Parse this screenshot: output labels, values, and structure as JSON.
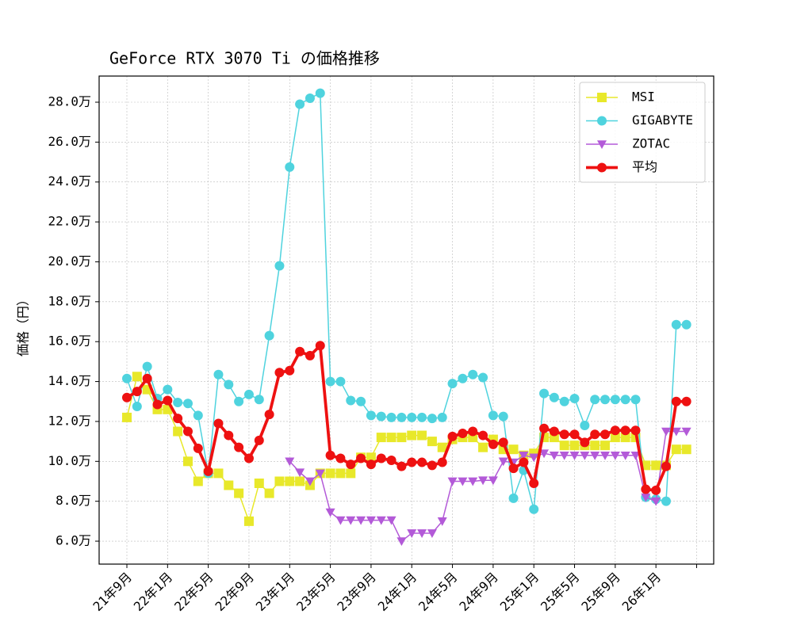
{
  "chart_data": {
    "type": "line",
    "title": "GeForce RTX 3070 Ti の価格推移",
    "y_label": "価格（円）",
    "categories": [
      "21年9月",
      null,
      null,
      null,
      "22年1月",
      null,
      null,
      null,
      "22年5月",
      null,
      null,
      null,
      "22年9月",
      null,
      null,
      null,
      "23年1月",
      null,
      null,
      null,
      "23年5月",
      null,
      null,
      null,
      "23年9月",
      null,
      null,
      null,
      "24年1月",
      null,
      null,
      null,
      "24年5月",
      null,
      null,
      null,
      "24年9月",
      null,
      null,
      null,
      "25年1月",
      null,
      null,
      null,
      "25年5月",
      null,
      null,
      null,
      "25年9月",
      null,
      null,
      null,
      "26年1月",
      null,
      null,
      null,
      null
    ],
    "series": [
      {
        "name": "MSI",
        "color": "#e8e82a",
        "marker": "square",
        "linewidth": 1,
        "values": [
          12.2,
          14.25,
          13.6,
          12.6,
          12.6,
          11.5,
          10.0,
          9.0,
          9.4,
          9.4,
          8.8,
          8.4,
          7.0,
          8.9,
          8.4,
          9.0,
          9.0,
          9.0,
          8.8,
          9.4,
          9.4,
          9.4,
          9.4,
          10.2,
          10.2,
          11.2,
          11.2,
          11.2,
          11.3,
          11.3,
          11.0,
          10.7,
          11.1,
          11.2,
          11.2,
          10.7,
          11.1,
          10.6,
          10.6,
          10.3,
          10.4,
          11.2,
          11.2,
          10.8,
          10.8,
          10.8,
          10.8,
          10.8,
          11.2,
          11.2,
          11.2,
          9.8,
          9.8,
          9.8,
          10.6,
          10.6,
          null
        ]
      },
      {
        "name": "GIGABYTE",
        "color": "#4fd3de",
        "marker": "circle",
        "linewidth": 1,
        "values": [
          14.15,
          12.75,
          14.75,
          13.15,
          13.6,
          12.95,
          12.9,
          12.3,
          9.4,
          14.35,
          13.85,
          13.0,
          13.35,
          13.1,
          16.3,
          19.8,
          24.75,
          27.9,
          28.2,
          28.45,
          14.0,
          14.0,
          13.05,
          13.0,
          12.3,
          12.25,
          12.2,
          12.2,
          12.2,
          12.2,
          12.15,
          12.2,
          13.9,
          14.15,
          14.35,
          14.2,
          12.3,
          12.25,
          8.15,
          9.55,
          7.6,
          13.4,
          13.2,
          13.0,
          13.15,
          11.8,
          13.1,
          13.1,
          13.1,
          13.1,
          13.1,
          8.2,
          8.1,
          8.0,
          16.85,
          16.85,
          null
        ]
      },
      {
        "name": "ZOTAC",
        "color": "#b35ad8",
        "marker": "triangle-down",
        "linewidth": 1,
        "values": [
          null,
          null,
          null,
          null,
          null,
          null,
          null,
          null,
          null,
          null,
          null,
          null,
          null,
          null,
          null,
          null,
          10.0,
          9.45,
          9.0,
          9.4,
          7.45,
          7.05,
          7.05,
          7.05,
          7.05,
          7.05,
          7.05,
          6.0,
          6.4,
          6.4,
          6.4,
          7.0,
          9.0,
          9.0,
          9.0,
          9.05,
          9.05,
          10.0,
          9.95,
          10.3,
          10.2,
          10.4,
          10.3,
          10.3,
          10.3,
          10.3,
          10.3,
          10.3,
          10.3,
          10.3,
          10.3,
          8.2,
          8.0,
          11.5,
          11.5,
          11.5,
          null
        ]
      },
      {
        "name": "平均",
        "color": "#ee1111",
        "marker": "circle",
        "linewidth": 2.5,
        "values": [
          13.2,
          13.5,
          14.15,
          12.85,
          13.05,
          12.15,
          11.5,
          10.65,
          9.5,
          11.9,
          11.3,
          10.7,
          10.15,
          11.05,
          12.35,
          14.45,
          14.55,
          15.5,
          15.3,
          15.8,
          10.3,
          10.15,
          9.85,
          10.15,
          9.85,
          10.15,
          10.05,
          9.75,
          9.95,
          9.95,
          9.8,
          9.95,
          11.25,
          11.4,
          11.5,
          11.3,
          10.85,
          10.95,
          9.65,
          9.95,
          8.9,
          11.65,
          11.5,
          11.35,
          11.35,
          10.95,
          11.35,
          11.35,
          11.55,
          11.55,
          11.55,
          8.6,
          8.55,
          9.75,
          13.0,
          13.0,
          null
        ]
      }
    ],
    "ylim": [
      4.85,
      29.31
    ],
    "yticks": [
      {
        "value": 6,
        "label": "6.0万"
      },
      {
        "value": 8,
        "label": "8.0万"
      },
      {
        "value": 10,
        "label": "10.0万"
      },
      {
        "value": 12,
        "label": "12.0万"
      },
      {
        "value": 14,
        "label": "14.0万"
      },
      {
        "value": 16,
        "label": "16.0万"
      },
      {
        "value": 18,
        "label": "18.0万"
      },
      {
        "value": 20,
        "label": "20.0万"
      },
      {
        "value": 22,
        "label": "22.0万"
      },
      {
        "value": 24,
        "label": "24.0万"
      },
      {
        "value": 26,
        "label": "26.0万"
      },
      {
        "value": 28,
        "label": "28.0万"
      }
    ],
    "grid": true,
    "legend": "upper right"
  }
}
